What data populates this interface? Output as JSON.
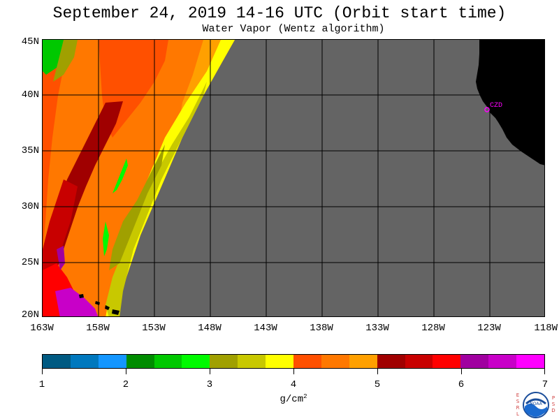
{
  "title": "September 24, 2019  14-16 UTC  (Orbit start time)",
  "subtitle": "Water Vapor (Wentz algorithm)",
  "lat_labels": [
    "45N",
    "40N",
    "35N",
    "30N",
    "25N",
    "20N"
  ],
  "lon_labels": [
    "163W",
    "158W",
    "153W",
    "148W",
    "143W",
    "138W",
    "133W",
    "128W",
    "123W",
    "118W"
  ],
  "station_label": "CZD",
  "colorbar": {
    "colors": [
      "#005a82",
      "#0078be",
      "#1496ff",
      "#008c00",
      "#00c800",
      "#00fa00",
      "#a0a000",
      "#c8c800",
      "#ffff00",
      "#ff5000",
      "#ff7800",
      "#ffa000",
      "#a00000",
      "#c80000",
      "#ff0000",
      "#a000a0",
      "#c800c8",
      "#ff00ff"
    ],
    "tick_labels": [
      "1",
      "2",
      "3",
      "4",
      "5",
      "6",
      "7"
    ],
    "units": "g/cm",
    "units_exp": "2"
  },
  "logo": {
    "left_text": "ESRL",
    "right_text": "PSD",
    "center_text": "NOAA"
  },
  "colors": {
    "no_data": "#646464",
    "land": "#000000",
    "grid": "#000000"
  }
}
